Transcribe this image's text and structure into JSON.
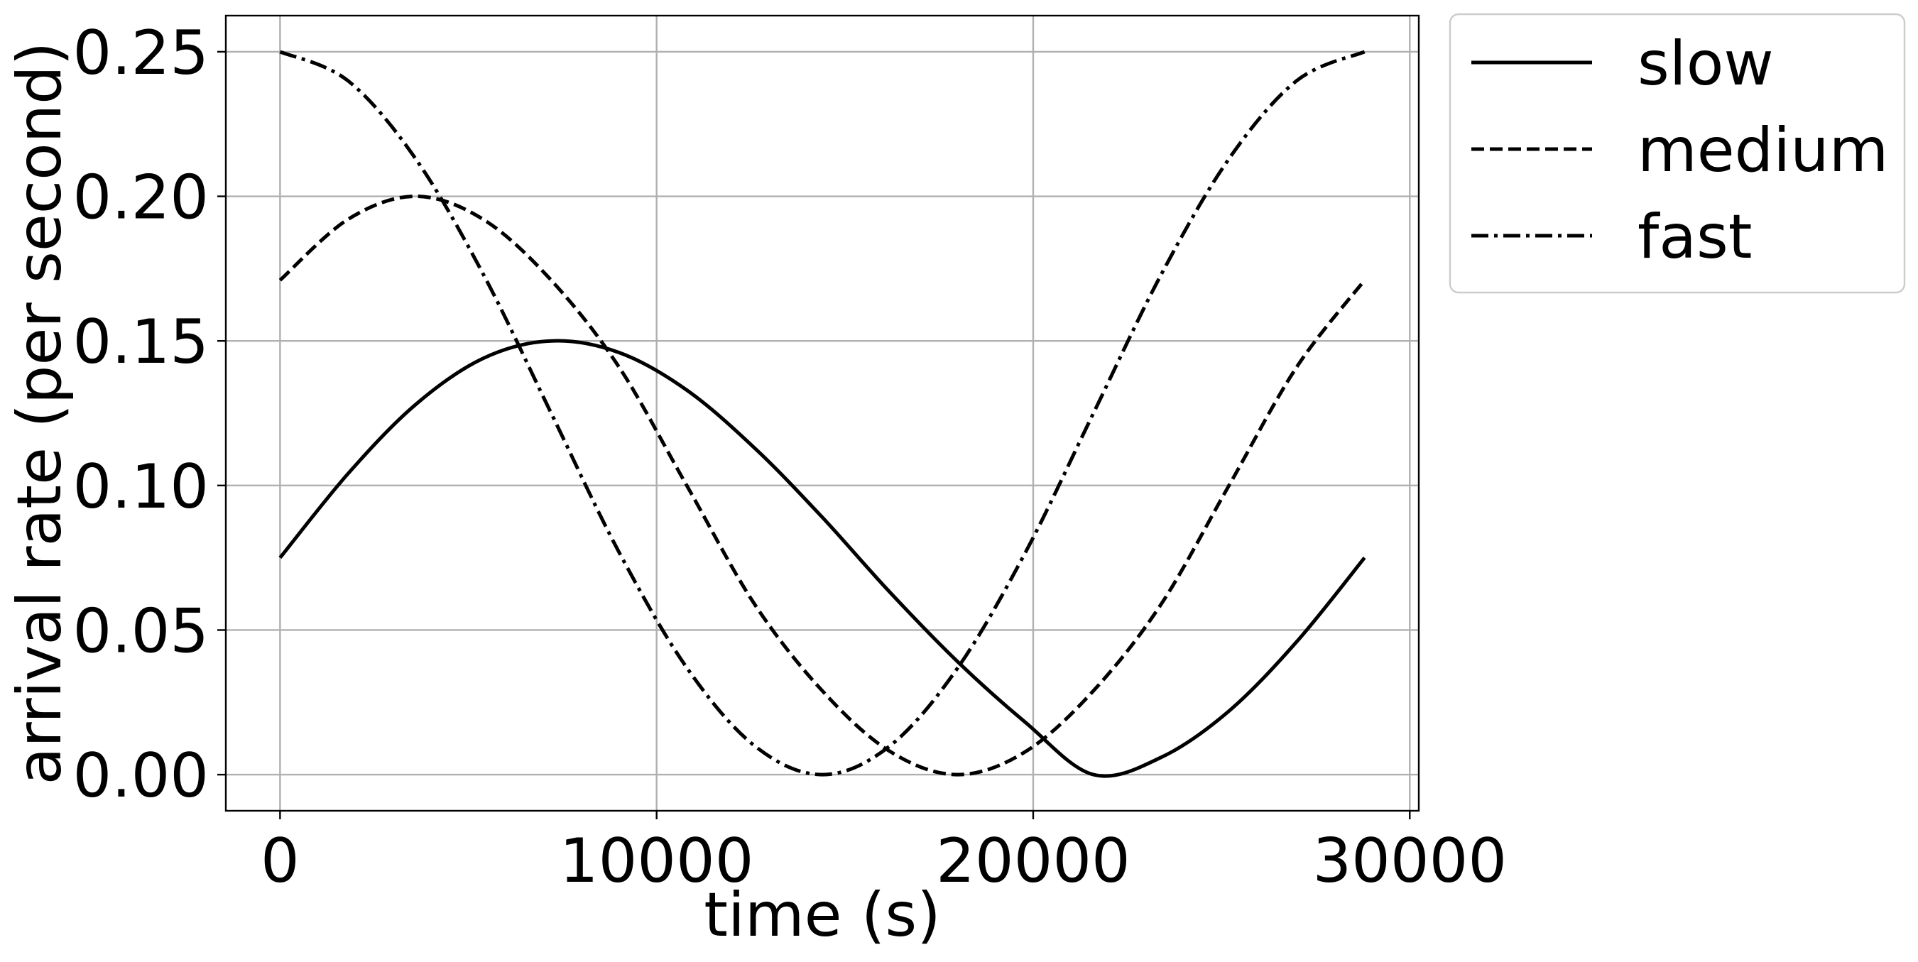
{
  "chart_data": {
    "type": "line",
    "xlabel": "time (s)",
    "ylabel": "arrival rate (per second)",
    "xlim": [
      -1440,
      30240
    ],
    "ylim": [
      -0.0125,
      0.2625
    ],
    "xticks": [
      0,
      10000,
      20000,
      30000
    ],
    "xtick_labels": [
      "0",
      "10000",
      "20000",
      "30000"
    ],
    "yticks": [
      0.0,
      0.05,
      0.1,
      0.15,
      0.2,
      0.25
    ],
    "ytick_labels": [
      "0.00",
      "0.05",
      "0.10",
      "0.15",
      "0.20",
      "0.25"
    ],
    "grid": true,
    "legend_position": "outside upper right",
    "x": [
      0,
      1800,
      3600,
      5400,
      7200,
      9000,
      10800,
      12600,
      14400,
      16200,
      18000,
      19800,
      21600,
      23400,
      25200,
      27000,
      28800
    ],
    "series": [
      {
        "name": "slow",
        "linestyle": "solid",
        "values": [
          0.075,
          0.104,
          0.128,
          0.144,
          0.15,
          0.146,
          0.133,
          0.113,
          0.089,
          0.063,
          0.039,
          0.018,
          0.0,
          0.006,
          0.022,
          0.046,
          0.075
        ]
      },
      {
        "name": "medium",
        "linestyle": "dashed",
        "values": [
          0.171,
          0.192,
          0.2,
          0.192,
          0.171,
          0.141,
          0.1,
          0.059,
          0.029,
          0.008,
          0.0,
          0.008,
          0.029,
          0.059,
          0.1,
          0.141,
          0.171
        ]
      },
      {
        "name": "fast",
        "linestyle": "dashdot",
        "values": [
          0.25,
          0.24,
          0.213,
          0.173,
          0.125,
          0.077,
          0.037,
          0.01,
          0.0,
          0.01,
          0.037,
          0.077,
          0.125,
          0.173,
          0.213,
          0.24,
          0.25
        ]
      }
    ]
  }
}
